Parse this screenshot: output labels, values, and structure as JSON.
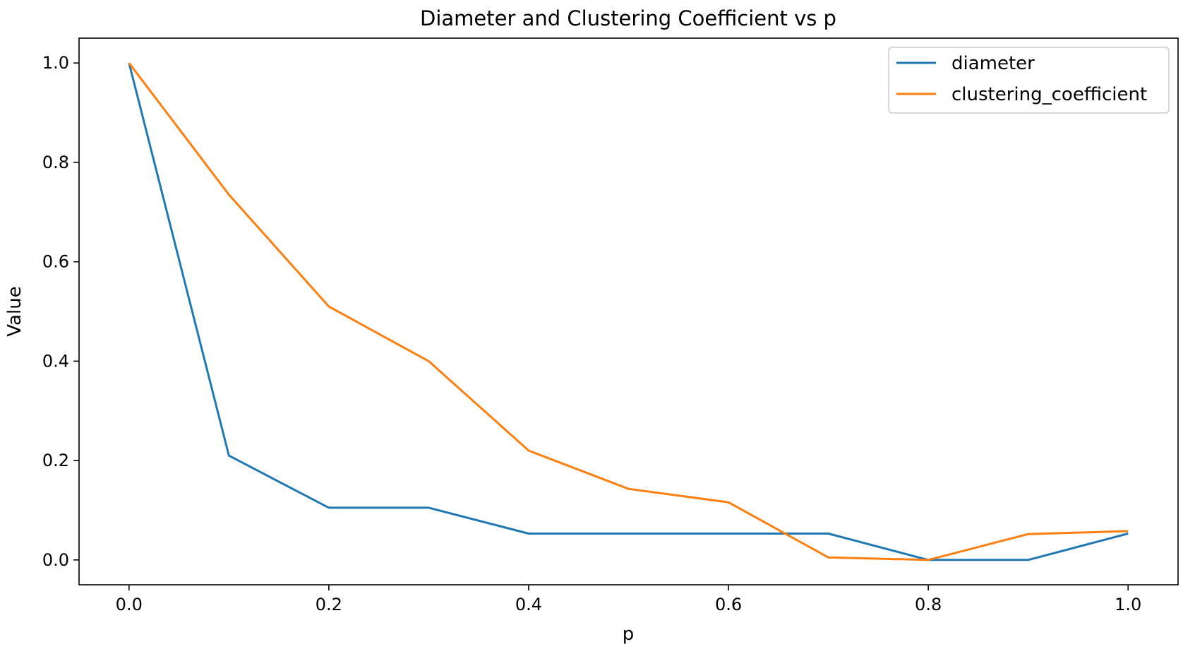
{
  "chart_data": {
    "type": "line",
    "title": "Diameter and Clustering Coefficient vs p",
    "xlabel": "p",
    "ylabel": "Value",
    "x": [
      0.0,
      0.1,
      0.2,
      0.3,
      0.4,
      0.5,
      0.6,
      0.7,
      0.8,
      0.9,
      1.0
    ],
    "xlim": [
      -0.05,
      1.05
    ],
    "ylim": [
      -0.05,
      1.05
    ],
    "xticks": [
      "0.0",
      "0.2",
      "0.4",
      "0.6",
      "0.8",
      "1.0"
    ],
    "yticks": [
      "0.0",
      "0.2",
      "0.4",
      "0.6",
      "0.8",
      "1.0"
    ],
    "xtick_values": [
      0.0,
      0.2,
      0.4,
      0.6,
      0.8,
      1.0
    ],
    "ytick_values": [
      0.0,
      0.2,
      0.4,
      0.6,
      0.8,
      1.0
    ],
    "grid": false,
    "legend_position": "top-right",
    "series": [
      {
        "name": "diameter",
        "color": "#1f77b4",
        "values": [
          1.0,
          0.21,
          0.105,
          0.105,
          0.053,
          0.053,
          0.053,
          0.053,
          0.0,
          0.0,
          0.053
        ]
      },
      {
        "name": "clustering_coefficient",
        "color": "#ff7f0e",
        "values": [
          1.0,
          0.735,
          0.51,
          0.4,
          0.22,
          0.143,
          0.116,
          0.005,
          0.0,
          0.052,
          0.058
        ]
      }
    ]
  }
}
